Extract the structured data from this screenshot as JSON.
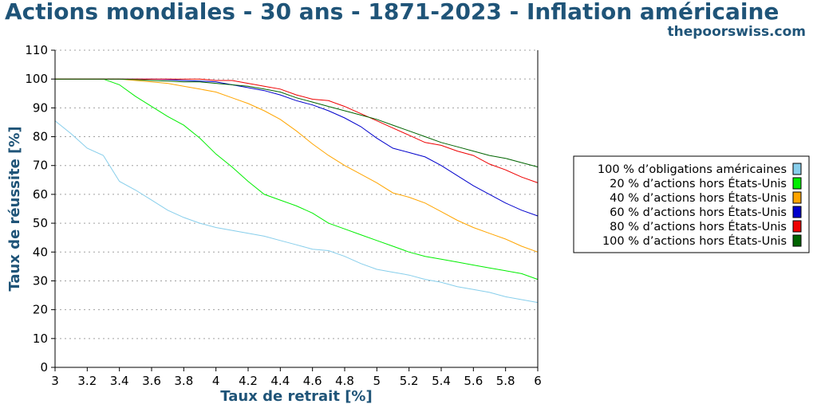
{
  "header": {
    "title": "Actions mondiales - 30 ans - 1871-2023 - Inflation américaine",
    "site": "thepoorswiss.com"
  },
  "chart_data": {
    "type": "line",
    "xlabel": "Taux de retrait [%]",
    "ylabel": "Taux de réussite [%]",
    "xlim": [
      3,
      6
    ],
    "ylim": [
      0,
      110
    ],
    "x_ticks": [
      "3",
      "3.2",
      "3.4",
      "3.6",
      "3.8",
      "4",
      "4.2",
      "4.4",
      "4.6",
      "4.8",
      "5",
      "5.2",
      "5.4",
      "5.6",
      "5.8",
      "6"
    ],
    "y_ticks": [
      "0",
      "10",
      "20",
      "30",
      "40",
      "50",
      "60",
      "70",
      "80",
      "90",
      "100",
      "110"
    ],
    "grid": "horizontal dotted",
    "legend_position": "right",
    "x": [
      3.0,
      3.1,
      3.2,
      3.3,
      3.4,
      3.5,
      3.6,
      3.7,
      3.8,
      3.9,
      4.0,
      4.1,
      4.2,
      4.3,
      4.4,
      4.5,
      4.6,
      4.7,
      4.8,
      4.9,
      5.0,
      5.1,
      5.2,
      5.3,
      5.4,
      5.5,
      5.6,
      5.7,
      5.8,
      5.9,
      6.0
    ],
    "series": [
      {
        "name": "100 % d’obligations américaines",
        "color": "#87ceeb",
        "values": [
          85.5,
          81,
          76,
          73.5,
          64.5,
          61.5,
          58,
          54.5,
          52,
          50,
          48.5,
          47.5,
          46.5,
          45.5,
          44,
          42.5,
          41,
          40.5,
          38.5,
          36,
          34,
          33,
          32,
          30.5,
          29.5,
          28,
          27,
          26,
          24.5,
          23.5,
          22.5
        ]
      },
      {
        "name": "20 % d’actions hors États-Unis",
        "color": "#00ee00",
        "values": [
          100,
          100,
          100,
          100,
          98,
          94,
          90.5,
          87,
          84,
          79.5,
          74,
          69.5,
          64.5,
          60,
          58,
          56,
          53.5,
          50,
          48,
          46,
          44,
          42,
          40,
          38.5,
          37.5,
          36.5,
          35.5,
          34.5,
          33.5,
          32.5,
          30.5
        ]
      },
      {
        "name": "40 % d’actions hors États-Unis",
        "color": "#ffa500",
        "values": [
          100,
          100,
          100,
          100,
          100,
          99.5,
          99,
          98.5,
          97.5,
          96.5,
          95.5,
          93.5,
          91.5,
          89,
          86,
          82,
          77.5,
          73.5,
          70,
          67,
          64,
          60.5,
          59,
          57,
          54,
          51,
          48.5,
          46.5,
          44.5,
          42,
          40
        ]
      },
      {
        "name": "60 % d’actions hors États-Unis",
        "color": "#0000cc",
        "values": [
          100,
          100,
          100,
          100,
          100,
          100,
          100,
          99.8,
          99.5,
          99.3,
          99,
          98,
          97,
          96,
          94.5,
          92.5,
          91,
          89,
          86.5,
          83.5,
          79.5,
          76,
          74.5,
          73,
          70,
          66.5,
          63,
          60,
          57,
          54.5,
          52.5
        ]
      },
      {
        "name": "80 % d’actions hors États-Unis",
        "color": "#ee0000",
        "values": [
          100,
          100,
          100,
          100,
          100,
          100,
          100,
          100,
          100,
          100,
          99.5,
          99.5,
          98.5,
          97.5,
          96.5,
          94.5,
          93,
          92.5,
          90.5,
          88,
          85.5,
          83,
          80.5,
          78,
          77,
          75,
          73.5,
          70.5,
          68.5,
          66,
          64
        ]
      },
      {
        "name": "100 % d’actions hors États-Unis",
        "color": "#006400",
        "values": [
          100,
          100,
          100,
          100,
          100,
          99.8,
          99.5,
          99.3,
          99,
          99,
          98.5,
          98,
          97.5,
          96.5,
          95.5,
          93.5,
          92,
          90.5,
          89,
          87.5,
          86,
          84,
          82,
          80,
          78,
          76.5,
          75,
          73.5,
          72.5,
          71,
          69.5
        ]
      }
    ]
  }
}
